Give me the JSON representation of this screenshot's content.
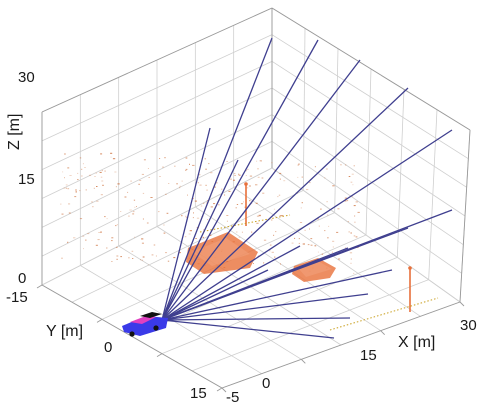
{
  "chart_data": {
    "type": "scatter3d",
    "title": "",
    "axes": {
      "x": {
        "label": "X [m]",
        "ticks": [
          "-5",
          "0",
          "15",
          "30"
        ],
        "range": [
          -5,
          30
        ]
      },
      "y": {
        "label": "Y [m]",
        "ticks": [
          "-15",
          "0",
          "15"
        ],
        "range": [
          -15,
          15
        ]
      },
      "z": {
        "label": "Z [m]",
        "ticks": [
          "0",
          "15",
          "30"
        ],
        "range": [
          0,
          30
        ]
      }
    },
    "grid": true,
    "sensor_rays": {
      "count": 14,
      "color": "#3f3f8f"
    },
    "objects": [
      {
        "kind": "vehicle",
        "colors": [
          "#3a3ae8",
          "#e040c0",
          "#111111"
        ]
      },
      {
        "kind": "box-cluster",
        "color": "#e8703a"
      },
      {
        "kind": "box-cluster",
        "color": "#e8703a"
      },
      {
        "kind": "pole",
        "color": "#e8703a"
      },
      {
        "kind": "pole",
        "color": "#e8703a"
      },
      {
        "kind": "point-cloud",
        "color": "#c8632a"
      }
    ]
  }
}
